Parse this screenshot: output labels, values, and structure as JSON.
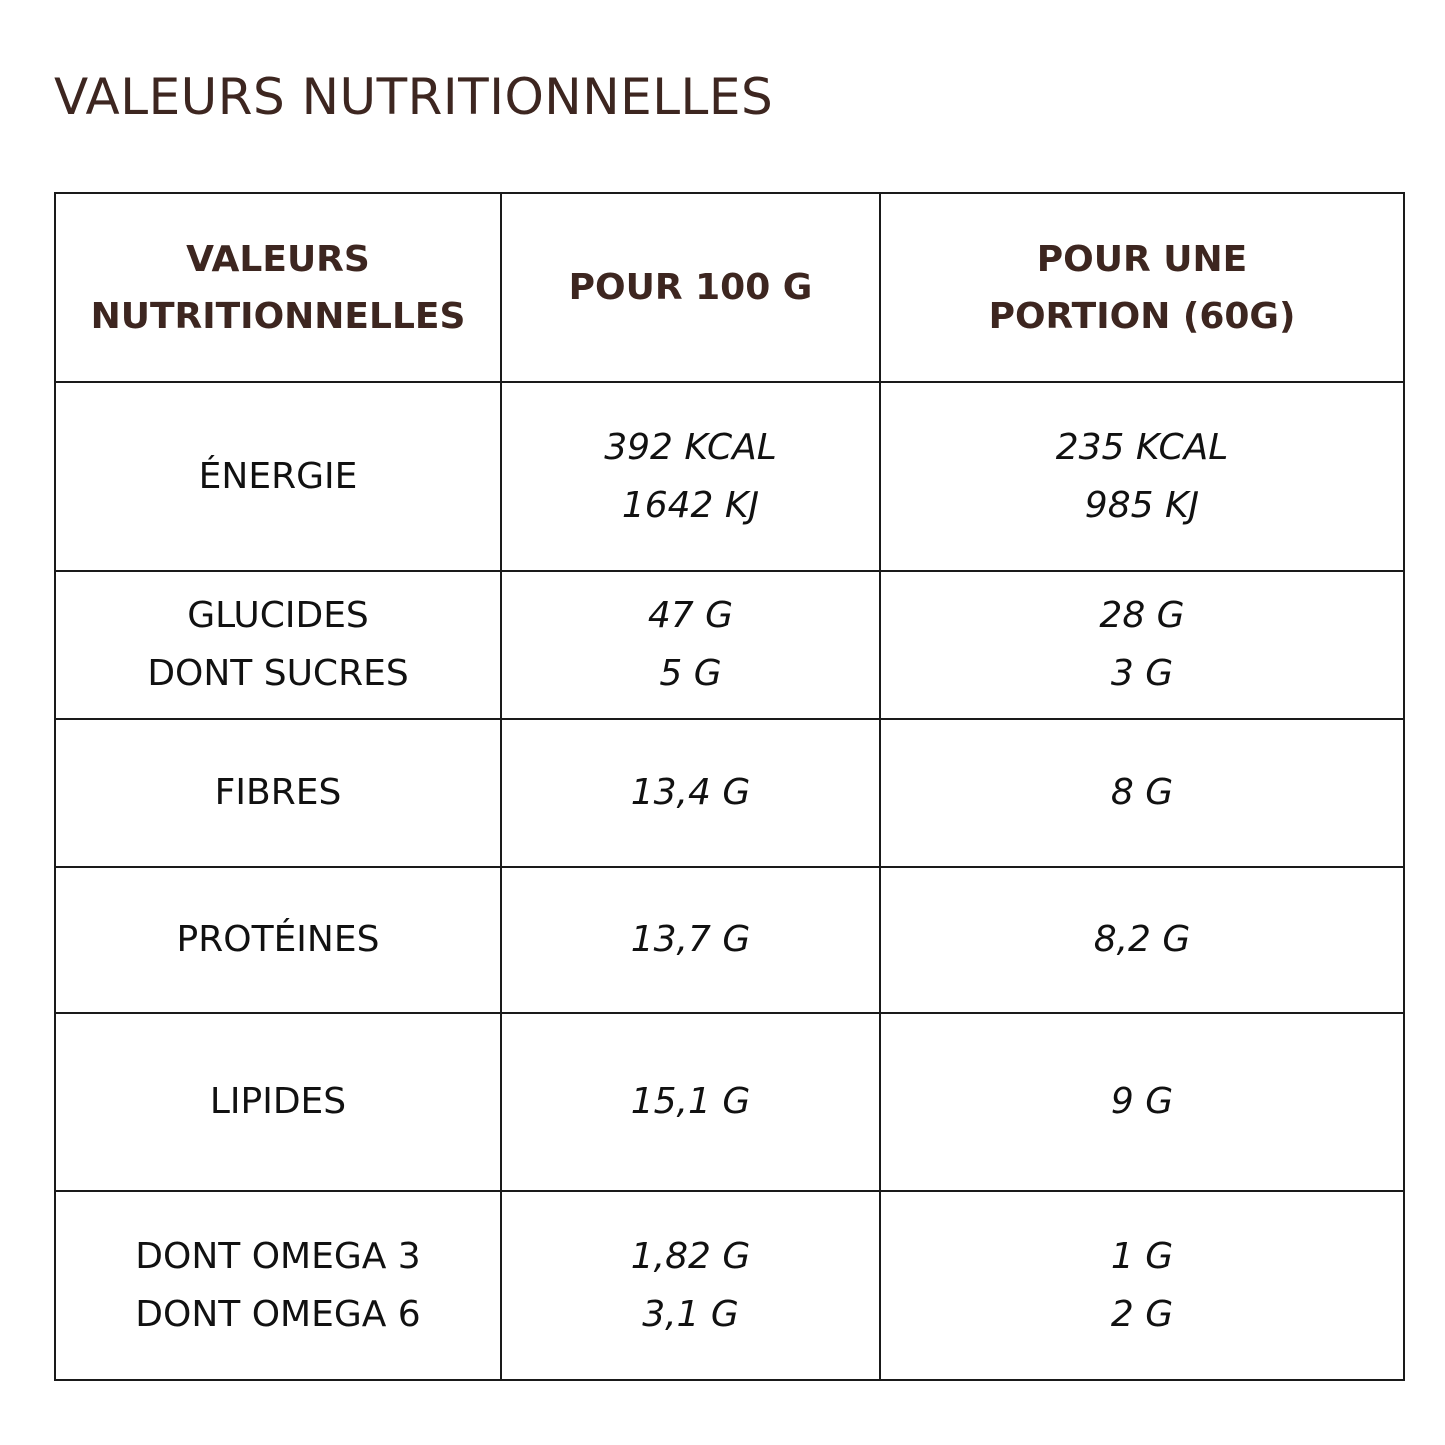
{
  "title": "VALEURS NUTRITIONNELLES",
  "table": {
    "headers": {
      "col1": [
        "VALEURS",
        "NUTRITIONNELLES"
      ],
      "col2": [
        "POUR 100 G"
      ],
      "col3": [
        "POUR UNE",
        "PORTION (60G)"
      ]
    },
    "rows": [
      {
        "label": [
          "ÉNERGIE"
        ],
        "per100": [
          "392 KCAL",
          "1642 KJ"
        ],
        "portion": [
          "235 KCAL",
          "985 KJ"
        ]
      },
      {
        "label": [
          "GLUCIDES",
          "DONT SUCRES"
        ],
        "per100": [
          "47 G",
          "5 G"
        ],
        "portion": [
          "28 G",
          "3 G"
        ]
      },
      {
        "label": [
          "FIBRES"
        ],
        "per100": [
          "13,4 G"
        ],
        "portion": [
          "8 G"
        ]
      },
      {
        "label": [
          "PROTÉINES"
        ],
        "per100": [
          "13,7 G"
        ],
        "portion": [
          "8,2 G"
        ]
      },
      {
        "label": [
          "LIPIDES"
        ],
        "per100": [
          "15,1 G"
        ],
        "portion": [
          "9 G"
        ]
      },
      {
        "label": [
          "DONT OMEGA 3",
          "DONT OMEGA 6"
        ],
        "per100": [
          "1,82 G",
          "3,1 G"
        ],
        "portion": [
          "1 G",
          "2 G"
        ]
      }
    ]
  },
  "colors": {
    "heading": "#3d2620",
    "text": "#111111",
    "border": "#1a1a1a",
    "background": "#ffffff"
  }
}
